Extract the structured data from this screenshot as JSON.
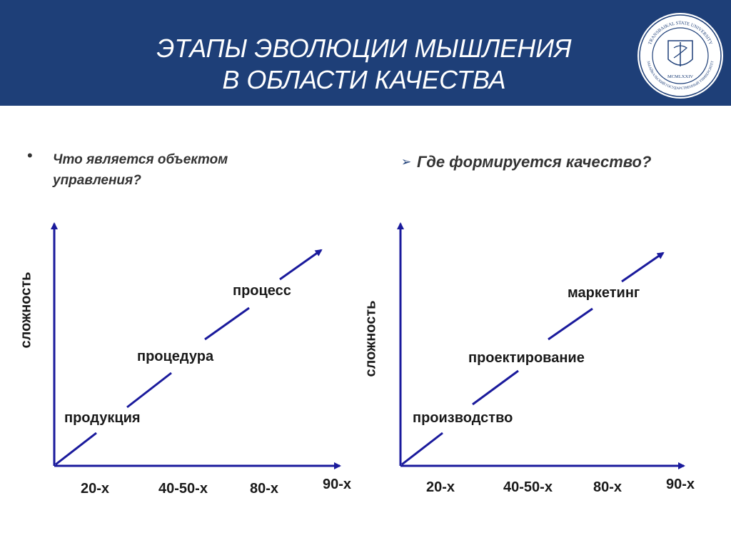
{
  "header": {
    "title_line1": "ЭТАПЫ ЭВОЛЮЦИИ МЫШЛЕНИЯ",
    "title_line2": "В ОБЛАСТИ КАЧЕСТВА",
    "logo_text_top": "TRANSBAIKAL STATE UNIVERSITY",
    "logo_text_bottom": "ЗАБАЙКАЛЬСКИЙ ГОСУДАРСТВЕННЫЙ УНИВЕРСИТЕТ",
    "logo_year": "MCMLXXIV"
  },
  "left": {
    "question_line1": "Что является объектом",
    "question_line2": "управления?",
    "y_label": "сложность",
    "stages": [
      "продукция",
      "процедура",
      "процесс"
    ],
    "x_ticks": [
      "20-х",
      "40-50-х",
      "80-х",
      "90-х"
    ]
  },
  "right": {
    "question": "Где формируется качество?",
    "y_label": "сложность",
    "stages": [
      "производство",
      "проектирование",
      "маркетинг"
    ],
    "x_ticks": [
      "20-х",
      "40-50-х",
      "80-х",
      "90-х"
    ]
  },
  "colors": {
    "header_bg": "#1e3f78",
    "axis": "#1a1a9c",
    "text": "#1a1a1a"
  }
}
